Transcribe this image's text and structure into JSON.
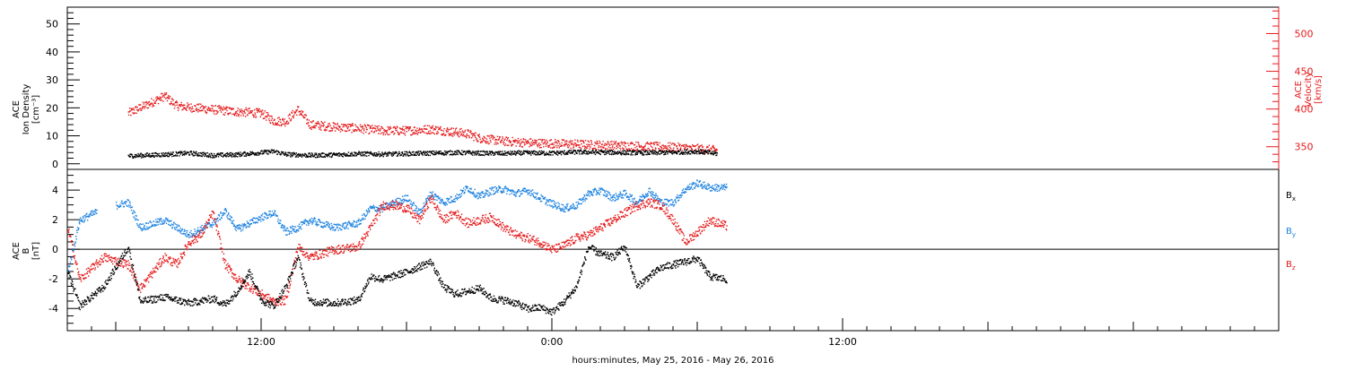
{
  "chart_data": [
    {
      "type": "scatter",
      "panel": "plasma",
      "ylabel_left": [
        "ACE",
        "Ion Density",
        "[cm⁻³]"
      ],
      "ylabel_right": [
        "ACE",
        "Velocity",
        "[km/s]"
      ],
      "ylim_left": [
        -2,
        56
      ],
      "ylim_right": [
        320,
        535
      ],
      "left_ticks": [
        0,
        10,
        20,
        30,
        40,
        50
      ],
      "right_ticks": [
        350,
        400,
        450,
        500
      ],
      "left_color": "#000000",
      "right_color": "#e41a1c",
      "series": [
        {
          "name": "Ion Density",
          "axis": "left",
          "color": "#000000",
          "x": [
            -17.5,
            -16,
            -15,
            -14,
            -13,
            -12,
            -11.5,
            -11,
            -10,
            -9,
            -8,
            -7,
            -6,
            -5,
            -4,
            -3,
            -2,
            -1,
            0,
            1,
            2,
            3,
            4,
            5,
            6,
            6.8
          ],
          "y": [
            3,
            3.5,
            4,
            3.2,
            3.5,
            4.2,
            4.6,
            3.6,
            3.2,
            3.4,
            3.8,
            3.6,
            3.8,
            4,
            4.2,
            4,
            3.9,
            4.1,
            4,
            4.4,
            4.3,
            4.2,
            4.1,
            4.3,
            4.6,
            3.8
          ]
        },
        {
          "name": "Velocity",
          "axis": "right",
          "color": "#e41a1c",
          "x": [
            -17.5,
            -16.5,
            -16,
            -15.5,
            -15,
            -14,
            -13,
            -12,
            -11.5,
            -11,
            -10.5,
            -10,
            -9,
            -8,
            -7,
            -6,
            -5,
            -4.5,
            -4,
            -3.5,
            -3,
            -2,
            -1,
            0,
            1,
            2,
            3,
            4,
            5,
            6,
            6.8
          ],
          "y": [
            395,
            410,
            418,
            405,
            403,
            400,
            397,
            395,
            385,
            384,
            400,
            380,
            377,
            375,
            372,
            372,
            374,
            372,
            370,
            368,
            362,
            358,
            356,
            355,
            354,
            353,
            352,
            351,
            350,
            348,
            346
          ]
        }
      ]
    },
    {
      "type": "scatter",
      "panel": "magnetic_field",
      "ylabel": [
        "ACE",
        "B",
        "[nT]"
      ],
      "ylim": [
        -5.5,
        5.4
      ],
      "yticks": [
        -4,
        -2,
        0,
        2,
        4
      ],
      "zero_line": true,
      "xlabel": "hours:minutes, May 25, 2016 - May 26, 2016",
      "xlim": [
        -20,
        30
      ],
      "xticks": [
        {
          "value": -12,
          "label": "12:00"
        },
        {
          "value": 0,
          "label": "0:00"
        },
        {
          "value": 12,
          "label": "12:00"
        }
      ],
      "legend_position": "right",
      "legend": [
        {
          "label": "B",
          "sub": "x",
          "color": "#000000"
        },
        {
          "label": "B",
          "sub": "y",
          "color": "#1c82e0"
        },
        {
          "label": "B",
          "sub": "z",
          "color": "#e41a1c"
        }
      ],
      "series": [
        {
          "name": "Bx",
          "color": "#000000",
          "x": [
            -20,
            -19.5,
            -18.5,
            -17.5,
            -17,
            -16,
            -15,
            -14,
            -13.5,
            -13,
            -12.5,
            -12,
            -11.5,
            -11,
            -10.5,
            -10,
            -9,
            -8,
            -7.5,
            -7,
            -6,
            -5,
            -4.5,
            -4,
            -3.5,
            -3,
            -2.5,
            -2,
            -1.5,
            -1,
            -0.5,
            0,
            0.5,
            1,
            1.5,
            2,
            2.5,
            3,
            3.5,
            4,
            4.5,
            5,
            5.5,
            6,
            6.5,
            7.2
          ],
          "y": [
            -1.5,
            -3.8,
            -2.5,
            0.2,
            -3.5,
            -3.2,
            -3.6,
            -3.3,
            -3.7,
            -2.8,
            -1.5,
            -3.4,
            -3.8,
            -2.5,
            -0.5,
            -3.5,
            -3.6,
            -3.4,
            -1.8,
            -2.0,
            -1.5,
            -0.8,
            -2.5,
            -3.0,
            -2.8,
            -2.6,
            -3.3,
            -3.4,
            -3.6,
            -4.0,
            -3.9,
            -4.2,
            -3.5,
            -2.5,
            0.2,
            -0.3,
            -0.5,
            0.2,
            -2.5,
            -1.8,
            -1.2,
            -1.0,
            -0.8,
            -0.6,
            -1.8,
            -2.0
          ]
        },
        {
          "name": "By",
          "color": "#1c82e0",
          "x": [
            -20,
            -19.5,
            -18.5,
            -17.5,
            -17,
            -16,
            -15.5,
            -15,
            -14,
            -13.5,
            -13,
            -12,
            -11.5,
            -11,
            -10.5,
            -10,
            -9,
            -8,
            -7.5,
            -7,
            -6.5,
            -6,
            -5.5,
            -5,
            -4.5,
            -4,
            -3.5,
            -3,
            -2.5,
            -2,
            -1.5,
            -1,
            -0.5,
            0,
            0.5,
            1,
            1.5,
            2,
            2.5,
            3,
            3.5,
            4,
            4.5,
            5,
            5.5,
            6,
            6.5,
            7.2
          ],
          "y": [
            -1.5,
            2.0,
            2.8,
            3.2,
            1.5,
            2.0,
            1.5,
            1.0,
            1.8,
            2.6,
            1.4,
            2.2,
            2.5,
            1.2,
            1.5,
            2.0,
            1.5,
            1.8,
            2.8,
            2.8,
            3.2,
            3.5,
            2.5,
            3.8,
            3.2,
            3.5,
            4.2,
            3.6,
            4.0,
            4.1,
            3.8,
            4.0,
            3.5,
            3.1,
            2.8,
            3.0,
            3.8,
            4.0,
            3.5,
            3.8,
            3.2,
            4.0,
            3.2,
            3.2,
            4.1,
            4.5,
            4.2,
            4.2
          ]
        },
        {
          "name": "Bz",
          "color": "#e41a1c",
          "x": [
            -20,
            -19.5,
            -18.5,
            -17.5,
            -17,
            -16,
            -15.5,
            -15,
            -14.5,
            -14,
            -13.5,
            -13,
            -12.5,
            -12,
            -11.5,
            -11,
            -10.5,
            -10,
            -9,
            -8,
            -7.5,
            -7,
            -6.5,
            -6,
            -5.5,
            -5,
            -4.5,
            -4,
            -3.5,
            -3,
            -2.5,
            -2,
            -1.5,
            -1,
            -0.5,
            0,
            0.5,
            1,
            1.5,
            2,
            2.5,
            3,
            3.5,
            4,
            4.5,
            5,
            5.5,
            6,
            6.5,
            7.2
          ],
          "y": [
            1.5,
            -2.0,
            -0.5,
            -1.0,
            -2.6,
            -0.5,
            -1.0,
            0.5,
            1.0,
            2.5,
            -1.0,
            -2.0,
            -2.5,
            -3.0,
            -3.5,
            -3.4,
            0.2,
            -0.5,
            0,
            0.2,
            1.5,
            3.0,
            3.0,
            2.8,
            2.0,
            3.5,
            2.0,
            2.5,
            1.8,
            2.0,
            2.2,
            1.5,
            1.0,
            0.8,
            0.5,
            0,
            0.3,
            0.8,
            1.0,
            1.5,
            2.0,
            2.5,
            3.0,
            3.2,
            3.0,
            2.0,
            0.5,
            1.2,
            2.0,
            1.6
          ]
        }
      ]
    }
  ]
}
